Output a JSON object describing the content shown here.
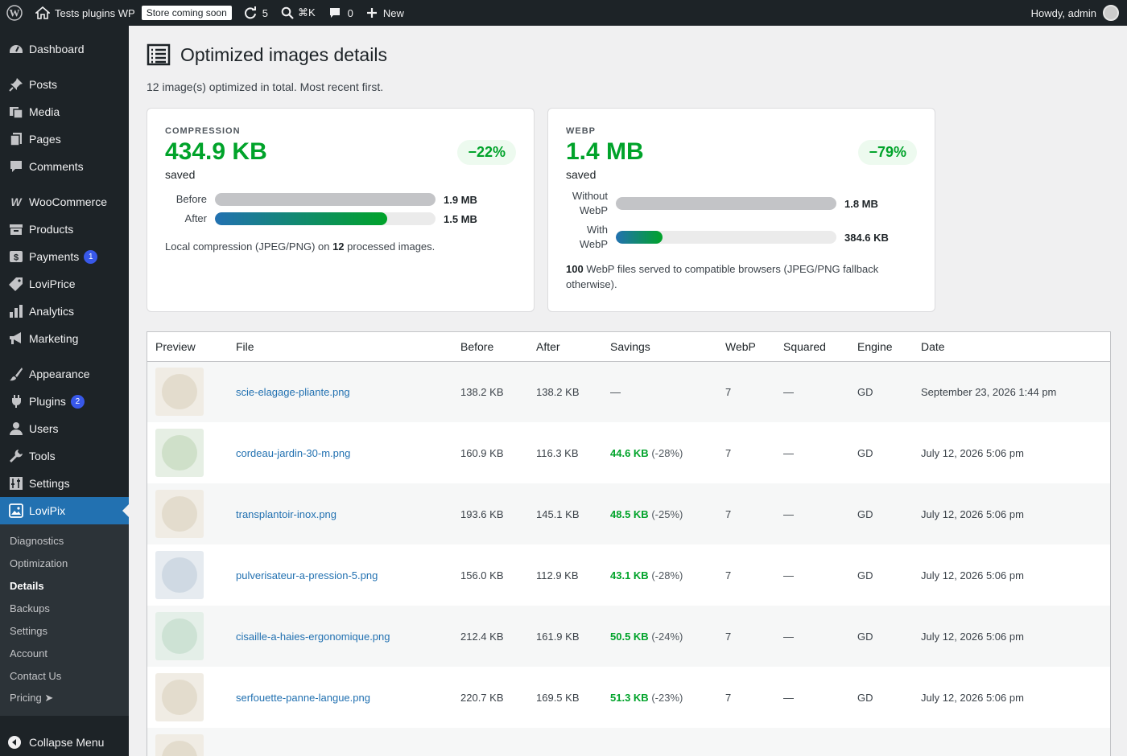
{
  "adminbar": {
    "site_name": "Tests plugins WP",
    "store_badge": "Store coming soon",
    "updates_count": "5",
    "search_shortcut": "⌘K",
    "comments_count": "0",
    "new_label": "New",
    "howdy": "Howdy, admin"
  },
  "sidebar": {
    "items": [
      {
        "label": "Dashboard",
        "icon": "dashboard-icon"
      },
      {
        "label": "Posts",
        "icon": "pin-icon"
      },
      {
        "label": "Media",
        "icon": "media-icon"
      },
      {
        "label": "Pages",
        "icon": "pages-icon"
      },
      {
        "label": "Comments",
        "icon": "comment-icon"
      },
      {
        "label": "WooCommerce",
        "icon": "woo-icon"
      },
      {
        "label": "Products",
        "icon": "archive-icon"
      },
      {
        "label": "Payments",
        "icon": "payments-icon",
        "badge": "1"
      },
      {
        "label": "LoviPrice",
        "icon": "tag-icon"
      },
      {
        "label": "Analytics",
        "icon": "bar-chart-icon"
      },
      {
        "label": "Marketing",
        "icon": "megaphone-icon"
      },
      {
        "label": "Appearance",
        "icon": "brush-icon"
      },
      {
        "label": "Plugins",
        "icon": "plugin-icon",
        "badge": "2"
      },
      {
        "label": "Users",
        "icon": "user-icon"
      },
      {
        "label": "Tools",
        "icon": "wrench-icon"
      },
      {
        "label": "Settings",
        "icon": "sliders-icon"
      },
      {
        "label": "LoviPix",
        "icon": "image-icon"
      }
    ],
    "submenu": [
      "Diagnostics",
      "Optimization",
      "Details",
      "Backups",
      "Settings",
      "Account",
      "Contact Us",
      "Pricing ➤"
    ],
    "collapse": "Collapse Menu"
  },
  "page": {
    "title": "Optimized images details",
    "subtitle": "12 image(s) optimized in total. Most recent first."
  },
  "compression": {
    "label": "COMPRESSION",
    "value": "434.9 KB",
    "saved": "saved",
    "pct": "−22%",
    "before_label": "Before",
    "before_value": "1.9 MB",
    "before_fraction": 1.0,
    "after_label": "After",
    "after_value": "1.5 MB",
    "after_fraction": 0.78,
    "note_prefix": "Local compression (JPEG/PNG) on ",
    "note_count": "12",
    "note_suffix": " processed images."
  },
  "webp": {
    "label": "WEBP",
    "value": "1.4 MB",
    "saved": "saved",
    "pct": "−79%",
    "without_label_1": "Without",
    "without_label_2": "WebP",
    "without_value": "1.8 MB",
    "without_fraction": 1.0,
    "with_label_1": "With",
    "with_label_2": "WebP",
    "with_value": "384.6 KB",
    "with_fraction": 0.21,
    "note_count": "100",
    "note_text": " WebP files served to compatible browsers (JPEG/PNG fallback otherwise)."
  },
  "table": {
    "headers": [
      "Preview",
      "File",
      "Before",
      "After",
      "Savings",
      "WebP",
      "Squared",
      "Engine",
      "Date"
    ],
    "rows": [
      {
        "file": "scie-elagage-pliante.png",
        "before": "138.2 KB",
        "after": "138.2 KB",
        "savings": "—",
        "savings_pct": "",
        "webp": "7",
        "squared": "—",
        "engine": "GD",
        "date": "September 23, 2026 1:44 pm",
        "thumb_bg": "#f0ece4",
        "thumb_color": "#e3dccd"
      },
      {
        "file": "cordeau-jardin-30-m.png",
        "before": "160.9 KB",
        "after": "116.3 KB",
        "savings": "44.6 KB",
        "savings_pct": "(-28%)",
        "webp": "7",
        "squared": "—",
        "engine": "GD",
        "date": "July 12, 2026 5:06 pm",
        "thumb_bg": "#e6efe4",
        "thumb_color": "#cfe0c9"
      },
      {
        "file": "transplantoir-inox.png",
        "before": "193.6 KB",
        "after": "145.1 KB",
        "savings": "48.5 KB",
        "savings_pct": "(-25%)",
        "webp": "7",
        "squared": "—",
        "engine": "GD",
        "date": "July 12, 2026 5:06 pm",
        "thumb_bg": "#f0ece4",
        "thumb_color": "#e3dccd"
      },
      {
        "file": "pulverisateur-a-pression-5.png",
        "before": "156.0 KB",
        "after": "112.9 KB",
        "savings": "43.1 KB",
        "savings_pct": "(-28%)",
        "webp": "7",
        "squared": "—",
        "engine": "GD",
        "date": "July 12, 2026 5:06 pm",
        "thumb_bg": "#e6ebf0",
        "thumb_color": "#cfd9e3"
      },
      {
        "file": "cisaille-a-haies-ergonomique.png",
        "before": "212.4 KB",
        "after": "161.9 KB",
        "savings": "50.5 KB",
        "savings_pct": "(-24%)",
        "webp": "7",
        "squared": "—",
        "engine": "GD",
        "date": "July 12, 2026 5:06 pm",
        "thumb_bg": "#e4efe8",
        "thumb_color": "#cde2d4"
      },
      {
        "file": "serfouette-panne-langue.png",
        "before": "220.7 KB",
        "after": "169.5 KB",
        "savings": "51.3 KB",
        "savings_pct": "(-23%)",
        "webp": "7",
        "squared": "—",
        "engine": "GD",
        "date": "July 12, 2026 5:06 pm",
        "thumb_bg": "#f0ece4",
        "thumb_color": "#e3dccd"
      },
      {
        "file": "",
        "before": "",
        "after": "",
        "savings": "",
        "savings_pct": "",
        "webp": "",
        "squared": "",
        "engine": "",
        "date": "",
        "thumb_bg": "#f0ece4",
        "thumb_color": "#e3dccd"
      }
    ]
  }
}
